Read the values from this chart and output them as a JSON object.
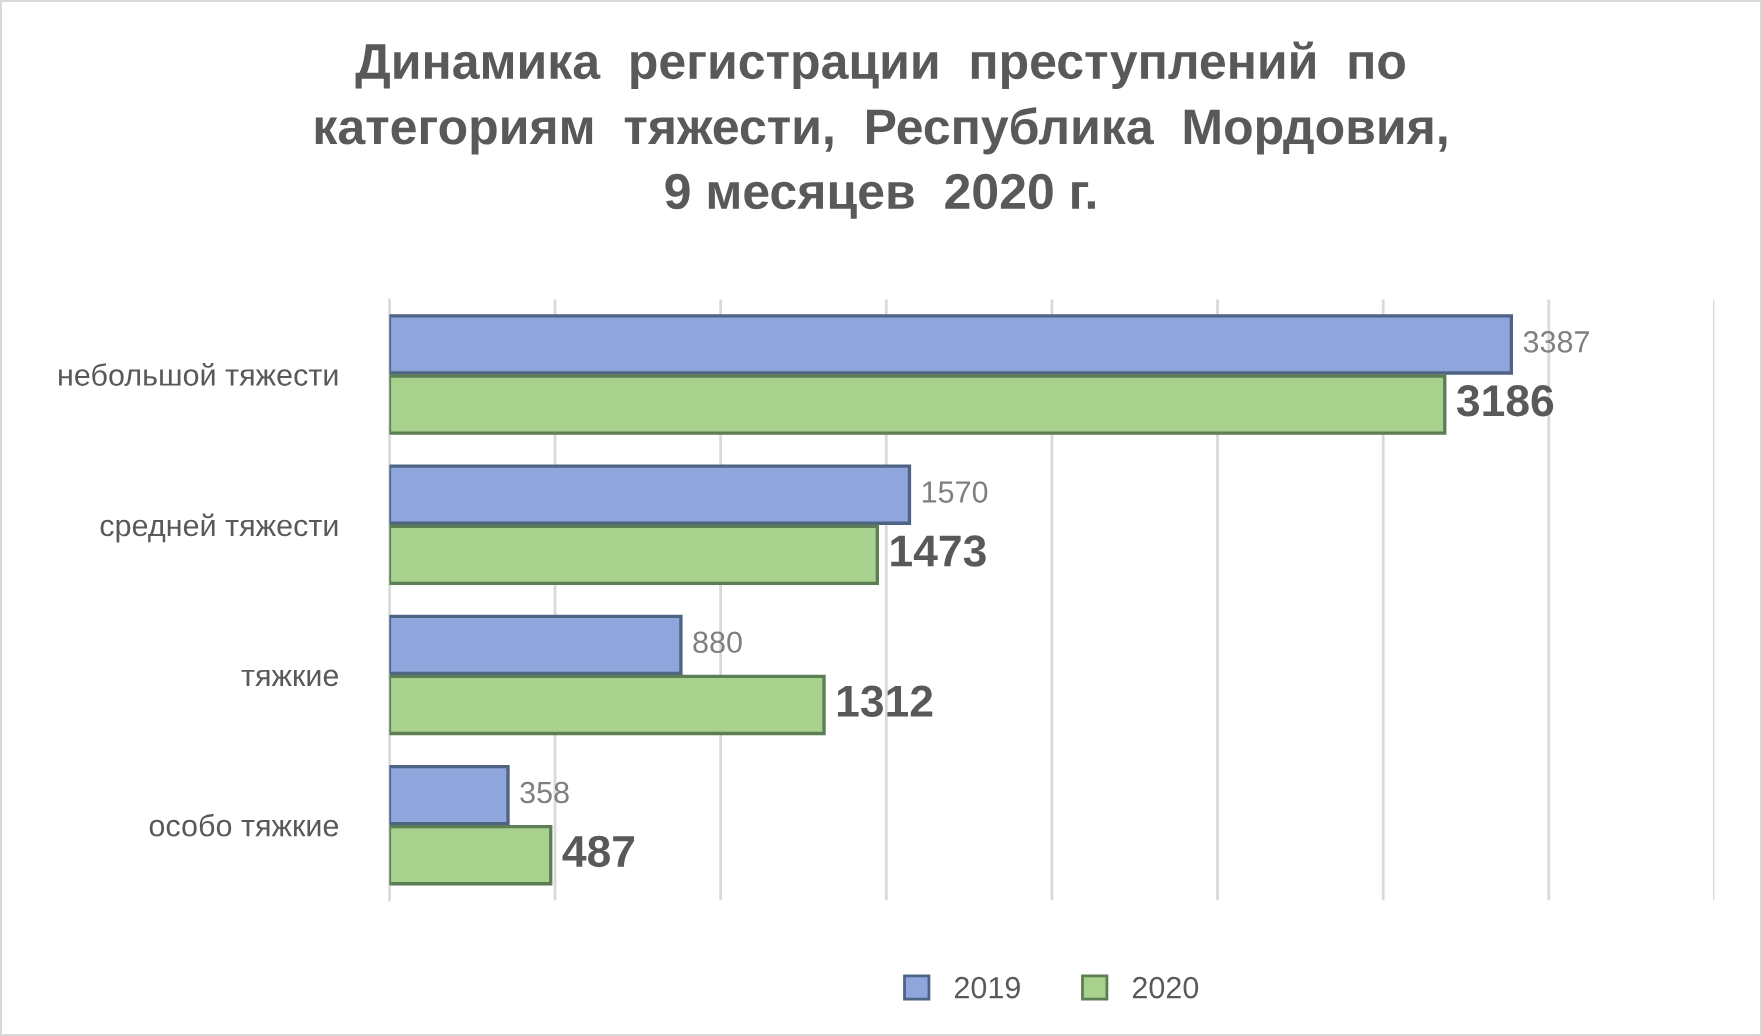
{
  "chart_data": {
    "type": "bar",
    "orientation": "horizontal",
    "title": "Динамика  регистрации  преступлений  по\nкатегориям  тяжести,  Республика  Мордовия,\n9 месяцев  2020 г.",
    "categories": [
      "небольшой тяжести",
      "средней тяжести",
      "тяжкие",
      "особо тяжкие"
    ],
    "series": [
      {
        "name": "2019",
        "color": "#8fa6dd",
        "values": [
          3387,
          1570,
          880,
          358
        ]
      },
      {
        "name": "2020",
        "color": "#a9d18e",
        "values": [
          3186,
          1473,
          1312,
          487
        ]
      }
    ],
    "xlim": [
      0,
      4000
    ],
    "xticks": [
      {
        "value": 0,
        "label": null
      },
      {
        "value": 500,
        "label": null
      },
      {
        "value": 1000,
        "label": null
      },
      {
        "value": 1500,
        "label": null
      },
      {
        "value": 2000,
        "label": null
      },
      {
        "value": 2500,
        "label": null
      },
      {
        "value": 3000,
        "label": null
      },
      {
        "value": 3500,
        "label": null
      },
      {
        "value": 4000,
        "label": null
      }
    ],
    "tick_labels": "y",
    "grid": "x",
    "legend": "bottom",
    "data_labels": true
  }
}
